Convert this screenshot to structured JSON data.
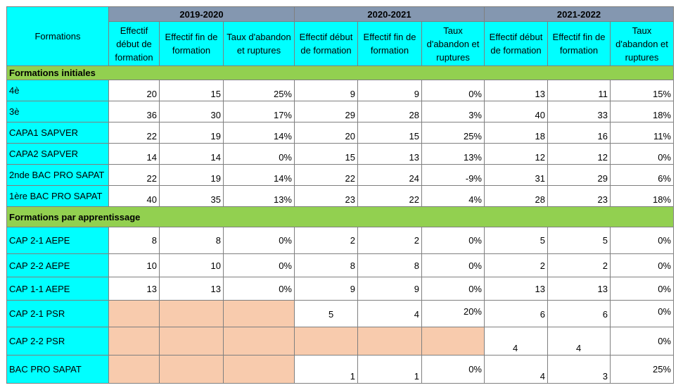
{
  "header": {
    "formations_label": "Formations",
    "years": [
      "2019-2020",
      "2020-2021",
      "2021-2022"
    ],
    "columns": [
      "Effectif début de formation",
      "Effectif fin de formation",
      "Taux d'abandon et ruptures"
    ]
  },
  "sections": [
    {
      "title": "Formations initiales",
      "rows": [
        {
          "name": "4è",
          "values": [
            "20",
            "15",
            "25%",
            "9",
            "9",
            "0%",
            "13",
            "11",
            "15%"
          ]
        },
        {
          "name": "3è",
          "values": [
            "36",
            "30",
            "17%",
            "29",
            "28",
            "3%",
            "40",
            "33",
            "18%"
          ]
        },
        {
          "name": "CAPA1 SAPVER",
          "values": [
            "22",
            "19",
            "14%",
            "20",
            "15",
            "25%",
            "18",
            "16",
            "11%"
          ]
        },
        {
          "name": "CAPA2 SAPVER",
          "values": [
            "14",
            "14",
            "0%",
            "15",
            "13",
            "13%",
            "12",
            "12",
            "0%"
          ]
        },
        {
          "name": "2nde BAC PRO SAPAT",
          "values": [
            "22",
            "19",
            "14%",
            "22",
            "24",
            "-9%",
            "31",
            "29",
            "6%"
          ]
        },
        {
          "name": "1ère BAC PRO SAPAT",
          "values": [
            "40",
            "35",
            "13%",
            "23",
            "22",
            "4%",
            "28",
            "23",
            "18%"
          ]
        }
      ]
    },
    {
      "title": "Formations par apprentissage",
      "rows": [
        {
          "name": "CAP 2-1 AEPE",
          "values": [
            "8",
            "8",
            "0%",
            "2",
            "2",
            "0%",
            "5",
            "5",
            "0%"
          ]
        },
        {
          "name": "CAP 2-2 AEPE",
          "values": [
            "10",
            "10",
            "0%",
            "8",
            "8",
            "0%",
            "2",
            "2",
            "0%"
          ]
        },
        {
          "name": "CAP 1-1 AEPE",
          "values": [
            "13",
            "13",
            "0%",
            "9",
            "9",
            "0%",
            "13",
            "13",
            "0%"
          ]
        },
        {
          "name": "CAP 2-1 PSR",
          "values": [
            "",
            "",
            "",
            "5",
            "4",
            "20%",
            "6",
            "6",
            "0%"
          ]
        },
        {
          "name": "CAP 2-2 PSR",
          "values": [
            "",
            "",
            "",
            "",
            "",
            "",
            "4",
            "4",
            "0%"
          ]
        },
        {
          "name": "BAC PRO SAPAT",
          "values": [
            "",
            "",
            "",
            "1",
            "1",
            "0%",
            "4",
            "3",
            "25%"
          ]
        }
      ]
    }
  ],
  "colors": {
    "year_header": "#8497b0",
    "name_cell": "#00ffff",
    "section_band": "#92d050",
    "no_data": "#f8cbad"
  }
}
